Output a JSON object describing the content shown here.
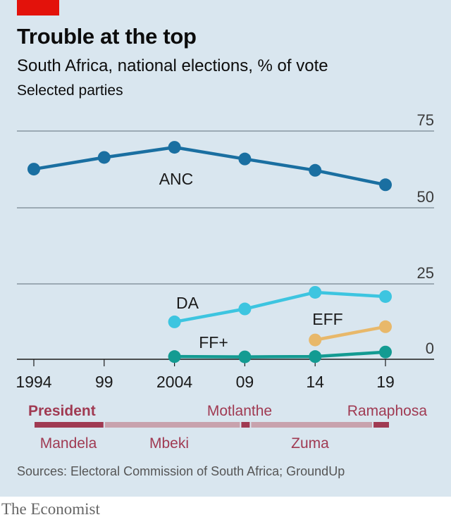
{
  "title": "Trouble at the top",
  "subtitle": "South Africa, national elections, % of vote",
  "subtitle2": "Selected parties",
  "source": "Sources: Electoral Commission of South Africa; GroundUp",
  "brand": "The Economist",
  "colors": {
    "ANC": "#1a6fa1",
    "DA": "#3dc5e0",
    "EFF": "#e8b86a",
    "FF+": "#139b92",
    "president_bar": "#a03a52",
    "president_bar_light": "#c8a2ad",
    "president_label": "#a03a52",
    "brand_red": "#e3120b"
  },
  "chart_data": {
    "type": "line",
    "x": [
      1994,
      1999,
      2004,
      2009,
      2014,
      2019
    ],
    "x_tick_labels": [
      "1994",
      "99",
      "2004",
      "09",
      "14",
      "19"
    ],
    "upper_panel": {
      "ylim": [
        50,
        75
      ],
      "tick_labels": [
        "75",
        "50"
      ],
      "series": [
        {
          "name": "ANC",
          "x": [
            1994,
            1999,
            2004,
            2009,
            2014,
            2019
          ],
          "values": [
            62.6,
            66.4,
            69.7,
            65.9,
            62.2,
            57.5
          ]
        }
      ]
    },
    "lower_panel": {
      "ylim": [
        0,
        25
      ],
      "tick_labels": [
        "25",
        "0"
      ],
      "series": [
        {
          "name": "DA",
          "x": [
            2004,
            2009,
            2014,
            2019
          ],
          "values": [
            12.4,
            16.7,
            22.2,
            20.8
          ]
        },
        {
          "name": "EFF",
          "x": [
            2014,
            2019
          ],
          "values": [
            6.4,
            10.8
          ]
        },
        {
          "name": "FF+",
          "x": [
            2004,
            2009,
            2014,
            2019
          ],
          "values": [
            0.9,
            0.8,
            0.9,
            2.4
          ]
        }
      ]
    },
    "presidents": {
      "label": "President",
      "terms": [
        {
          "name": "Mandela",
          "start": 1994,
          "end": 1999,
          "highlight": true
        },
        {
          "name": "Mbeki",
          "start": 1999,
          "end": 2008.7,
          "highlight": false
        },
        {
          "name": "Motlanthe",
          "start": 2008.7,
          "end": 2009.4,
          "highlight": true
        },
        {
          "name": "Zuma",
          "start": 2009.4,
          "end": 2018.1,
          "highlight": false
        },
        {
          "name": "Ramaphosa",
          "start": 2018.1,
          "end": 2019.3,
          "highlight": true
        }
      ]
    }
  }
}
